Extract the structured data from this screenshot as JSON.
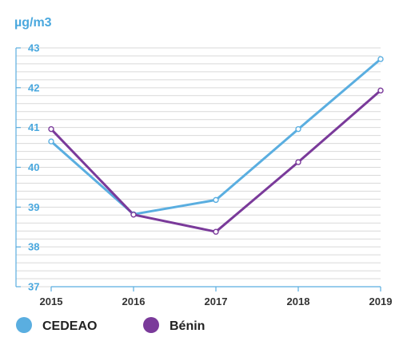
{
  "chart_data": {
    "type": "line",
    "ylabel": "µg/m3",
    "x": [
      "2015",
      "2016",
      "2017",
      "2018",
      "2019"
    ],
    "ylim": [
      37,
      43
    ],
    "yticks": [
      "37",
      "38",
      "39",
      "40",
      "41",
      "42",
      "43"
    ],
    "grid": true,
    "legend_position": "bottom-left",
    "series": [
      {
        "name": "CEDEAO",
        "color": "#5aaee0",
        "values": [
          40.65,
          38.82,
          39.18,
          40.96,
          42.72
        ]
      },
      {
        "name": "Bénin",
        "color": "#7a3a9a",
        "values": [
          40.96,
          38.81,
          38.38,
          40.13,
          41.93
        ]
      }
    ]
  }
}
